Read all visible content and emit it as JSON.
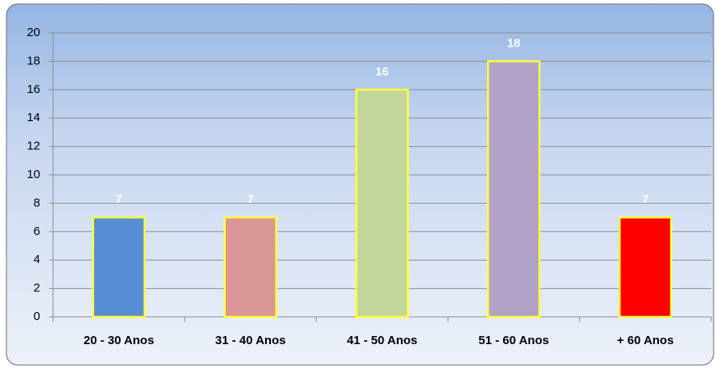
{
  "chart_data": {
    "type": "bar",
    "categories": [
      "20 - 30 Anos",
      "31 - 40 Anos",
      "41 - 50 Anos",
      "51 - 60 Anos",
      "+ 60 Anos"
    ],
    "values": [
      7,
      7,
      16,
      18,
      7
    ],
    "colors": [
      "#558ed5",
      "#d99694",
      "#c3d69b",
      "#b3a2c7",
      "#ff0000"
    ],
    "edgecolor": "#ffff33",
    "ylim": [
      0,
      20
    ],
    "yticks": [
      0,
      2,
      4,
      6,
      8,
      10,
      12,
      14,
      16,
      18,
      20
    ],
    "grid": true
  }
}
